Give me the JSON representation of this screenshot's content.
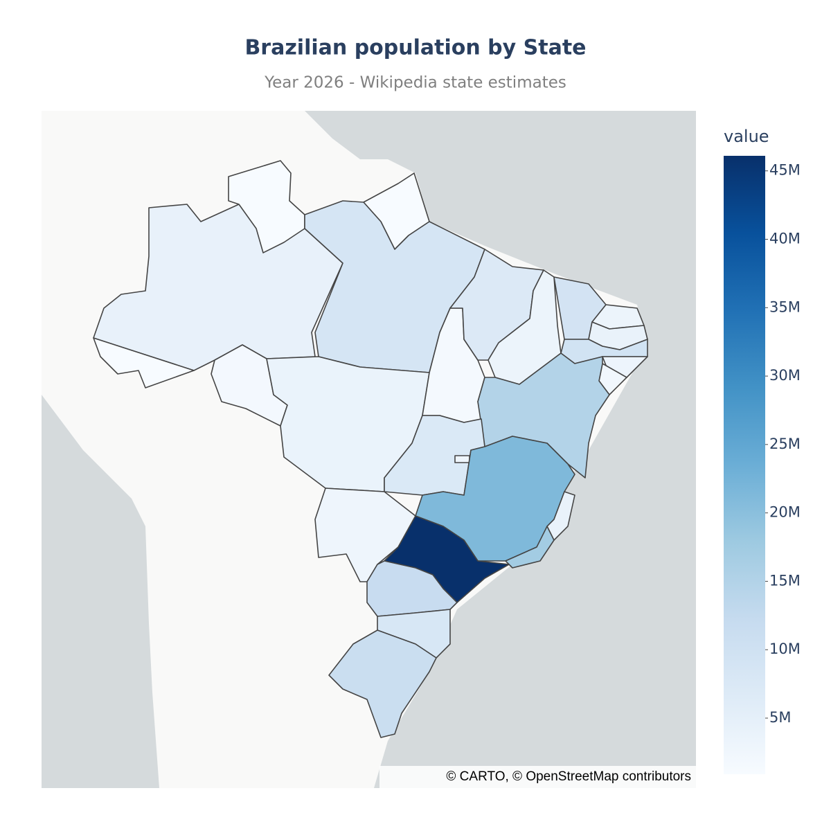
{
  "chart_data": {
    "type": "choropleth",
    "title": "Brazilian population by State",
    "subtitle": "Year 2026 - Wikipedia state estimates",
    "colorbar_title": "value",
    "attribution": "© CARTO, © OpenStreetMap contributors",
    "values": [
      4300000,
      950000,
      900000,
      900000,
      8700000,
      1800000,
      3900000,
      1600000,
      7100000,
      3400000,
      9200000,
      3400000,
      4100000,
      9500000,
      3200000,
      2300000,
      14900000,
      7400000,
      3000000,
      2900000,
      21300000,
      4100000,
      17200000,
      46100000,
      11800000,
      8100000,
      11200000
    ],
    "clim": [
      900000,
      46100000
    ],
    "cticks": [
      {
        "value": 5000000,
        "label": "5M"
      },
      {
        "value": 10000000,
        "label": "10M"
      },
      {
        "value": 15000000,
        "label": "15M"
      },
      {
        "value": 20000000,
        "label": "20M"
      },
      {
        "value": 25000000,
        "label": "25M"
      },
      {
        "value": 30000000,
        "label": "30M"
      },
      {
        "value": 35000000,
        "label": "35M"
      },
      {
        "value": 40000000,
        "label": "40M"
      },
      {
        "value": 45000000,
        "label": "45M"
      }
    ],
    "colorscale": [
      "#f7fbff",
      "#deebf7",
      "#c6dbef",
      "#9ecae1",
      "#6baed6",
      "#4292c6",
      "#2171b5",
      "#08519c",
      "#08306b"
    ]
  }
}
